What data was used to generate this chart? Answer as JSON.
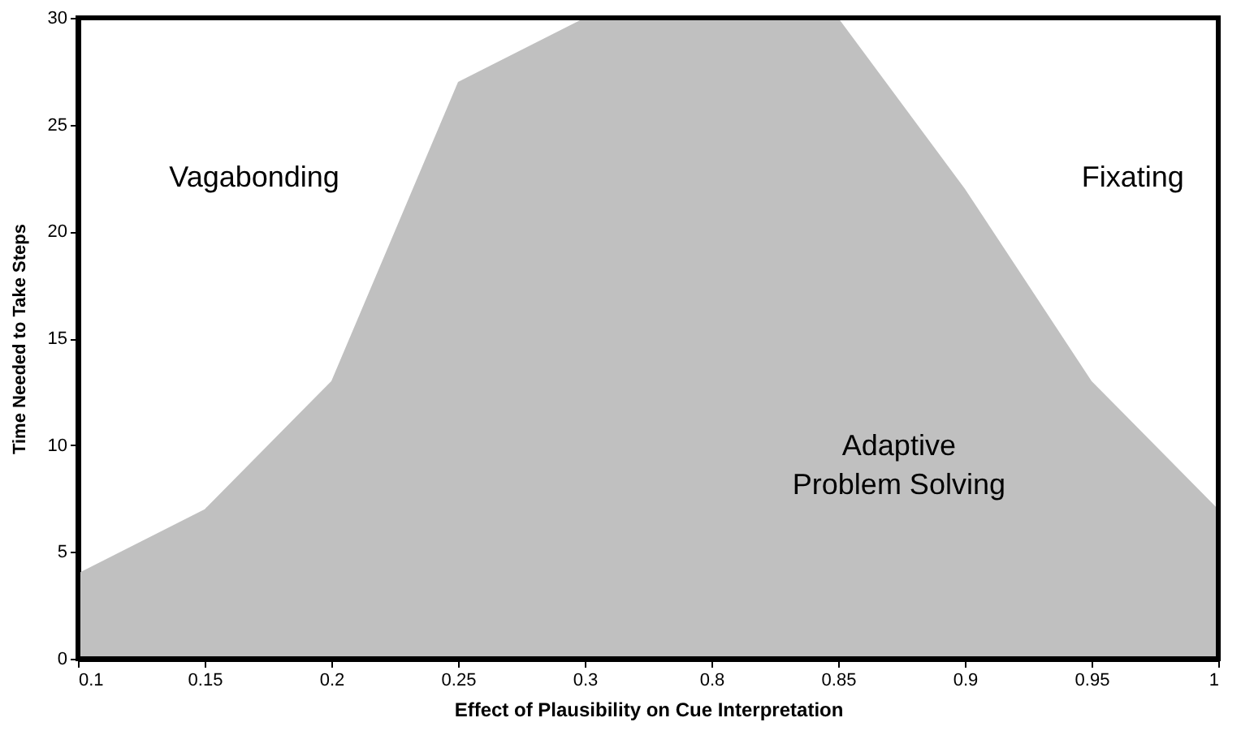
{
  "chart_data": {
    "type": "area",
    "xlabel": "Effect of Plausibility on Cue Interpretation",
    "ylabel": "Time Needed to Take Steps",
    "categories": [
      "0.1",
      "0.15",
      "0.2",
      "0.25",
      "0.3",
      "0.8",
      "0.85",
      "0.9",
      "0.95",
      "1"
    ],
    "series": [
      {
        "color": "#c0c0c0",
        "values": [
          4,
          7,
          13,
          27,
          30,
          30,
          30,
          22,
          13,
          7
        ]
      }
    ],
    "ylim": [
      0,
      30
    ],
    "yticks": [
      0,
      5,
      10,
      15,
      20,
      25,
      30
    ],
    "grid": false,
    "annotations": [
      "Vagabonding",
      "Fixating",
      "Adaptive\nProblem Solving"
    ]
  }
}
